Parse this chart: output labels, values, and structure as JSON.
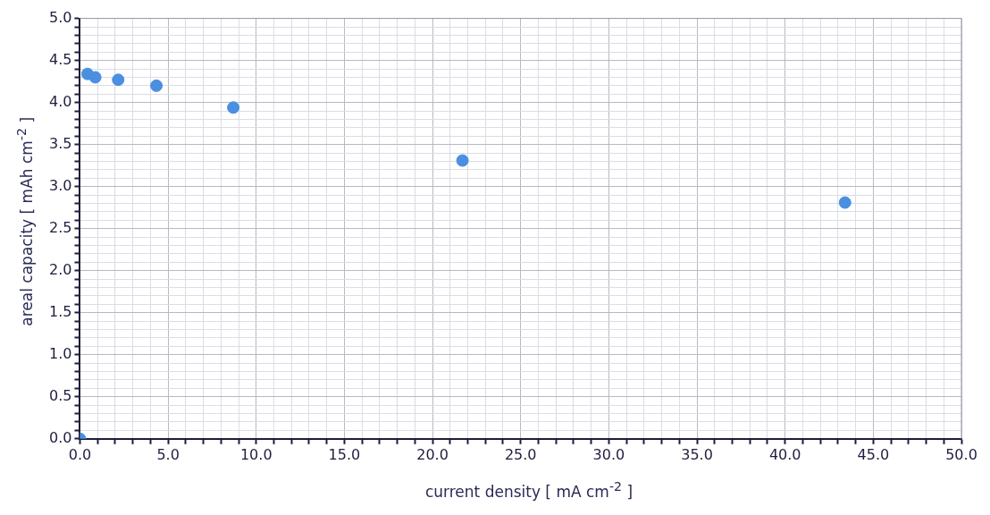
{
  "chart_data": {
    "type": "scatter",
    "xlabel": "current density [ mA cm$^{-2}$ ]",
    "ylabel": "areal capacity [ mAh cm$^{-2}$ ]",
    "x": [
      0,
      0.43,
      0.87,
      2.17,
      4.34,
      8.7,
      21.7,
      43.4
    ],
    "series": [
      {
        "color": "#4a8fe0",
        "values": [
          0,
          4.34,
          4.3,
          4.27,
          4.2,
          3.94,
          3.31,
          2.81
        ]
      }
    ],
    "xlim": [
      0,
      50
    ],
    "xticks": [
      {
        "value": 0,
        "label": "0.0"
      },
      {
        "value": 1,
        "label": null
      },
      {
        "value": 2,
        "label": null
      },
      {
        "value": 3,
        "label": null
      },
      {
        "value": 4,
        "label": null
      },
      {
        "value": 5,
        "label": "5.0"
      },
      {
        "value": 6,
        "label": null
      },
      {
        "value": 7,
        "label": null
      },
      {
        "value": 8,
        "label": null
      },
      {
        "value": 9,
        "label": null
      },
      {
        "value": 10,
        "label": "10.0"
      },
      {
        "value": 11,
        "label": null
      },
      {
        "value": 12,
        "label": null
      },
      {
        "value": 13,
        "label": null
      },
      {
        "value": 14,
        "label": null
      },
      {
        "value": 15,
        "label": "15.0"
      },
      {
        "value": 16,
        "label": null
      },
      {
        "value": 17,
        "label": null
      },
      {
        "value": 18,
        "label": null
      },
      {
        "value": 19,
        "label": null
      },
      {
        "value": 20,
        "label": "20.0"
      },
      {
        "value": 21,
        "label": null
      },
      {
        "value": 22,
        "label": null
      },
      {
        "value": 23,
        "label": null
      },
      {
        "value": 24,
        "label": null
      },
      {
        "value": 25,
        "label": "25.0"
      },
      {
        "value": 26,
        "label": null
      },
      {
        "value": 27,
        "label": null
      },
      {
        "value": 28,
        "label": null
      },
      {
        "value": 29,
        "label": null
      },
      {
        "value": 30,
        "label": "30.0"
      },
      {
        "value": 31,
        "label": null
      },
      {
        "value": 32,
        "label": null
      },
      {
        "value": 33,
        "label": null
      },
      {
        "value": 34,
        "label": null
      },
      {
        "value": 35,
        "label": "35.0"
      },
      {
        "value": 36,
        "label": null
      },
      {
        "value": 37,
        "label": null
      },
      {
        "value": 38,
        "label": null
      },
      {
        "value": 39,
        "label": null
      },
      {
        "value": 40,
        "label": "40.0"
      },
      {
        "value": 41,
        "label": null
      },
      {
        "value": 42,
        "label": null
      },
      {
        "value": 43,
        "label": null
      },
      {
        "value": 44,
        "label": null
      },
      {
        "value": 45,
        "label": "45.0"
      },
      {
        "value": 46,
        "label": null
      },
      {
        "value": 47,
        "label": null
      },
      {
        "value": 48,
        "label": null
      },
      {
        "value": 49,
        "label": null
      },
      {
        "value": 50,
        "label": "50.0"
      }
    ],
    "ylim": [
      0,
      5
    ],
    "yticks": [
      {
        "value": 0,
        "label": "0.0"
      },
      {
        "value": 0.1,
        "label": null
      },
      {
        "value": 0.2,
        "label": null
      },
      {
        "value": 0.3,
        "label": null
      },
      {
        "value": 0.4,
        "label": null
      },
      {
        "value": 0.5,
        "label": "0.5"
      },
      {
        "value": 0.6,
        "label": null
      },
      {
        "value": 0.7,
        "label": null
      },
      {
        "value": 0.8,
        "label": null
      },
      {
        "value": 0.9,
        "label": null
      },
      {
        "value": 1,
        "label": "1.0"
      },
      {
        "value": 1.1,
        "label": null
      },
      {
        "value": 1.2,
        "label": null
      },
      {
        "value": 1.3,
        "label": null
      },
      {
        "value": 1.4,
        "label": null
      },
      {
        "value": 1.5,
        "label": "1.5"
      },
      {
        "value": 1.6,
        "label": null
      },
      {
        "value": 1.7,
        "label": null
      },
      {
        "value": 1.8,
        "label": null
      },
      {
        "value": 1.9,
        "label": null
      },
      {
        "value": 2,
        "label": "2.0"
      },
      {
        "value": 2.1,
        "label": null
      },
      {
        "value": 2.2,
        "label": null
      },
      {
        "value": 2.3,
        "label": null
      },
      {
        "value": 2.4,
        "label": null
      },
      {
        "value": 2.5,
        "label": "2.5"
      },
      {
        "value": 2.6,
        "label": null
      },
      {
        "value": 2.7,
        "label": null
      },
      {
        "value": 2.8,
        "label": null
      },
      {
        "value": 2.9,
        "label": null
      },
      {
        "value": 3,
        "label": "3.0"
      },
      {
        "value": 3.1,
        "label": null
      },
      {
        "value": 3.2,
        "label": null
      },
      {
        "value": 3.3,
        "label": null
      },
      {
        "value": 3.4,
        "label": null
      },
      {
        "value": 3.5,
        "label": "3.5"
      },
      {
        "value": 3.6,
        "label": null
      },
      {
        "value": 3.7,
        "label": null
      },
      {
        "value": 3.8,
        "label": null
      },
      {
        "value": 3.9,
        "label": null
      },
      {
        "value": 4,
        "label": "4.0"
      },
      {
        "value": 4.1,
        "label": null
      },
      {
        "value": 4.2,
        "label": null
      },
      {
        "value": 4.3,
        "label": null
      },
      {
        "value": 4.4,
        "label": null
      },
      {
        "value": 4.5,
        "label": "4.5"
      },
      {
        "value": 4.6,
        "label": null
      },
      {
        "value": 4.7,
        "label": null
      },
      {
        "value": 4.8,
        "label": null
      },
      {
        "value": 4.9,
        "label": null
      },
      {
        "value": 5,
        "label": "5.0"
      }
    ],
    "grid": true,
    "marker": "circle",
    "legend": false
  }
}
